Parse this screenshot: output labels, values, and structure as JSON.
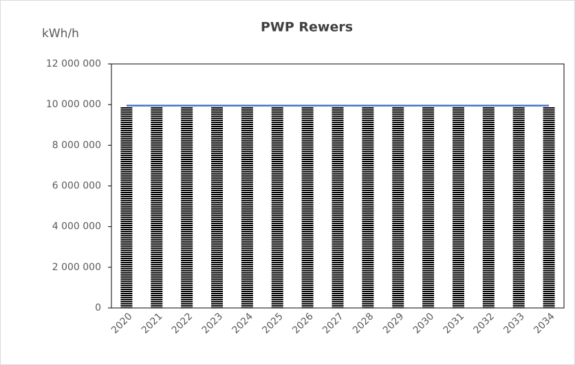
{
  "chart_data": {
    "type": "bar",
    "title": "PWP Rewers",
    "y_label": "kWh/h",
    "categories": [
      "2020",
      "2021",
      "2022",
      "2023",
      "2024",
      "2025",
      "2026",
      "2027",
      "2028",
      "2029",
      "2030",
      "2031",
      "2032",
      "2033",
      "2034"
    ],
    "series": [
      {
        "type": "bar",
        "color": "#000000",
        "values": [
          9900000,
          9900000,
          9900000,
          9900000,
          9900000,
          9900000,
          9900000,
          9900000,
          9900000,
          9900000,
          9900000,
          9900000,
          9900000,
          9900000,
          9900000
        ]
      },
      {
        "type": "line",
        "color": "#4472c4",
        "values": [
          9950000,
          9950000,
          9950000,
          9950000,
          9950000,
          9950000,
          9950000,
          9950000,
          9950000,
          9950000,
          9950000,
          9950000,
          9950000,
          9950000,
          9950000
        ]
      }
    ],
    "ylim": [
      0,
      12000000
    ],
    "yticks": [
      {
        "value": 0,
        "label": "0"
      },
      {
        "value": 2000000,
        "label": "2 000 000"
      },
      {
        "value": 4000000,
        "label": "4 000 000"
      },
      {
        "value": 6000000,
        "label": "6 000 000"
      },
      {
        "value": 8000000,
        "label": "8 000 000"
      },
      {
        "value": 10000000,
        "label": "10 000 000"
      },
      {
        "value": 12000000,
        "label": "12 000 000"
      }
    ]
  }
}
